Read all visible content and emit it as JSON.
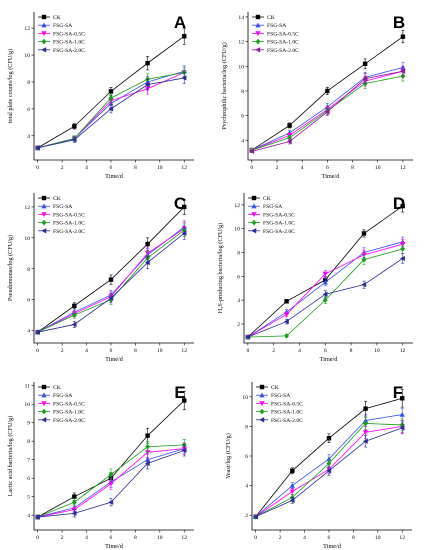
{
  "chart_data": [
    {
      "type": "line",
      "letter": "A",
      "xlabel": "Time/d",
      "ylabel": "total plate counts/log (CFU/g)",
      "x": [
        0,
        3,
        6,
        9,
        12
      ],
      "xlim": [
        -0.3,
        12.8
      ],
      "ylim": [
        2.2,
        13.2
      ],
      "xticks": [
        0,
        2,
        4,
        6,
        8,
        10,
        12
      ],
      "yticks": [
        4,
        6,
        8,
        10,
        12
      ],
      "legend": "top-left",
      "series": [
        {
          "name": "CK",
          "color": "#000000",
          "marker": "square",
          "values": [
            3.1,
            4.7,
            7.3,
            9.4,
            11.4
          ],
          "err": [
            0.1,
            0.2,
            0.3,
            0.5,
            0.6
          ]
        },
        {
          "name": "FSG-SA",
          "color": "#3a4ff0",
          "marker": "triangle-up",
          "values": [
            3.1,
            3.8,
            6.4,
            8.0,
            8.8
          ],
          "err": [
            0.1,
            0.2,
            0.3,
            0.4,
            0.4
          ]
        },
        {
          "name": "FSG-SA-0.5C",
          "color": "#ff00ff",
          "marker": "triangle-down",
          "values": [
            3.1,
            3.8,
            6.6,
            7.5,
            8.7
          ],
          "err": [
            0.1,
            0.2,
            0.3,
            0.4,
            0.4
          ]
        },
        {
          "name": "FSG-SA-1.0C",
          "color": "#1a9f1a",
          "marker": "diamond",
          "values": [
            3.1,
            3.8,
            6.8,
            8.2,
            8.7
          ],
          "err": [
            0.1,
            0.2,
            0.3,
            0.4,
            0.4
          ]
        },
        {
          "name": "FSG-SA-2.0C",
          "color": "#2a2a9a",
          "marker": "triangle-left",
          "values": [
            3.1,
            3.7,
            6.0,
            7.8,
            8.3
          ],
          "err": [
            0.1,
            0.2,
            0.3,
            0.4,
            0.4
          ]
        }
      ]
    },
    {
      "type": "line",
      "letter": "B",
      "xlabel": "Time/d",
      "ylabel": "Psychrophilic bacteria/log (CFU/g)",
      "x": [
        0,
        3,
        6,
        9,
        12
      ],
      "xlim": [
        -0.3,
        12.8
      ],
      "ylim": [
        2.4,
        14.4
      ],
      "xticks": [
        0,
        2,
        4,
        6,
        8,
        10,
        12
      ],
      "yticks": [
        4,
        6,
        8,
        10,
        12,
        14
      ],
      "legend": "top-left",
      "series": [
        {
          "name": "CK",
          "color": "#000000",
          "marker": "square",
          "values": [
            3.2,
            5.2,
            8.0,
            10.2,
            12.4
          ],
          "err": [
            0.1,
            0.2,
            0.3,
            0.4,
            0.5
          ]
        },
        {
          "name": "FSG-SA",
          "color": "#3a4ff0",
          "marker": "triangle-up",
          "values": [
            3.2,
            4.6,
            6.7,
            9.1,
            9.9
          ],
          "err": [
            0.1,
            0.2,
            0.3,
            0.4,
            0.4
          ]
        },
        {
          "name": "FSG-SA-0.5C",
          "color": "#ff00ff",
          "marker": "triangle-down",
          "values": [
            3.2,
            4.4,
            6.5,
            8.8,
            9.6
          ],
          "err": [
            0.1,
            0.2,
            0.3,
            0.4,
            0.4
          ]
        },
        {
          "name": "FSG-SA-1.0C",
          "color": "#1a9f1a",
          "marker": "diamond",
          "values": [
            3.2,
            4.2,
            6.4,
            8.6,
            9.2
          ],
          "err": [
            0.1,
            0.2,
            0.3,
            0.4,
            0.4
          ]
        },
        {
          "name": "FSG-SA-2.0C",
          "color": "#8a1a9a",
          "marker": "triangle-left",
          "values": [
            3.1,
            3.9,
            6.3,
            9.0,
            9.6
          ],
          "err": [
            0.1,
            0.2,
            0.3,
            0.4,
            0.4
          ]
        }
      ]
    },
    {
      "type": "line",
      "letter": "C",
      "xlabel": "Time/d",
      "ylabel": "Pseudomonas/log (CFU/g)",
      "x": [
        0,
        3,
        6,
        9,
        12
      ],
      "xlim": [
        -0.3,
        12.8
      ],
      "ylim": [
        3.2,
        12.9
      ],
      "xticks": [
        0,
        2,
        4,
        6,
        8,
        10,
        12
      ],
      "yticks": [
        4,
        6,
        8,
        10,
        12
      ],
      "legend": "top-left",
      "series": [
        {
          "name": "CK",
          "color": "#000000",
          "marker": "square",
          "values": [
            3.9,
            5.6,
            7.3,
            9.6,
            12.0
          ],
          "err": [
            0.1,
            0.2,
            0.3,
            0.4,
            0.5
          ]
        },
        {
          "name": "FSG-SA",
          "color": "#3a4ff0",
          "marker": "triangle-up",
          "values": [
            3.9,
            5.2,
            6.3,
            8.9,
            10.7
          ],
          "err": [
            0.1,
            0.2,
            0.3,
            0.4,
            0.4
          ]
        },
        {
          "name": "FSG-SA-0.5C",
          "color": "#ff00ff",
          "marker": "triangle-down",
          "values": [
            3.9,
            5.1,
            6.2,
            9.0,
            10.6
          ],
          "err": [
            0.1,
            0.2,
            0.3,
            0.4,
            0.4
          ]
        },
        {
          "name": "FSG-SA-1.0C",
          "color": "#1a9f1a",
          "marker": "diamond",
          "values": [
            3.9,
            5.0,
            6.0,
            8.7,
            10.5
          ],
          "err": [
            0.1,
            0.2,
            0.3,
            0.4,
            0.4
          ]
        },
        {
          "name": "FSG-SA-2.0C",
          "color": "#2a2a9a",
          "marker": "triangle-left",
          "values": [
            3.9,
            4.4,
            6.1,
            8.4,
            10.3
          ],
          "err": [
            0.1,
            0.2,
            0.3,
            0.4,
            0.4
          ]
        }
      ]
    },
    {
      "type": "line",
      "letter": "D",
      "xlabel": "Time/d",
      "ylabel": "H₂S-producing bacteria/log (CFU/g)",
      "x": [
        0,
        3,
        6,
        9,
        12
      ],
      "xlim": [
        -0.3,
        12.8
      ],
      "ylim": [
        0.4,
        13.0
      ],
      "xticks": [
        0,
        2,
        4,
        6,
        8,
        10,
        12
      ],
      "yticks": [
        2,
        4,
        6,
        8,
        10,
        12
      ],
      "legend": "top-left",
      "series": [
        {
          "name": "CK",
          "color": "#000000",
          "marker": "square",
          "values": [
            0.9,
            3.9,
            5.7,
            9.6,
            11.9
          ],
          "err": [
            0.05,
            0.15,
            0.3,
            0.3,
            0.5
          ]
        },
        {
          "name": "FSG-SA",
          "color": "#3a4ff0",
          "marker": "triangle-up",
          "values": [
            0.9,
            3.0,
            5.5,
            8.0,
            8.9
          ],
          "err": [
            0.05,
            0.2,
            0.3,
            0.4,
            0.4
          ]
        },
        {
          "name": "FSG-SA-0.5C",
          "color": "#ff00ff",
          "marker": "triangle-down",
          "values": [
            0.9,
            2.8,
            6.2,
            7.8,
            8.7
          ],
          "err": [
            0.05,
            0.2,
            0.3,
            0.4,
            0.4
          ]
        },
        {
          "name": "FSG-SA-1.0C",
          "color": "#1a9f1a",
          "marker": "diamond",
          "values": [
            0.9,
            1.0,
            4.0,
            7.4,
            8.3
          ],
          "err": [
            0.05,
            0.1,
            0.3,
            0.4,
            0.4
          ]
        },
        {
          "name": "FSG-SA-2.0C",
          "color": "#2a2a9a",
          "marker": "triangle-left",
          "values": [
            0.9,
            2.2,
            4.5,
            5.3,
            7.5
          ],
          "err": [
            0.05,
            0.2,
            0.3,
            0.3,
            0.4
          ]
        }
      ]
    },
    {
      "type": "line",
      "letter": "E",
      "xlabel": "Time/d",
      "ylabel": "Lactic acid bacteria/log (CFU/g)",
      "x": [
        0,
        3,
        6,
        9,
        12
      ],
      "xlim": [
        -0.3,
        12.8
      ],
      "ylim": [
        3.2,
        11.2
      ],
      "xticks": [
        0,
        2,
        4,
        6,
        8,
        10,
        12
      ],
      "yticks": [
        4,
        5,
        6,
        7,
        8,
        9,
        10,
        11
      ],
      "legend": "top-left",
      "series": [
        {
          "name": "CK",
          "color": "#000000",
          "marker": "square",
          "values": [
            3.9,
            5.0,
            6.0,
            8.3,
            10.2
          ],
          "err": [
            0.1,
            0.2,
            0.3,
            0.4,
            0.5
          ]
        },
        {
          "name": "FSG-SA",
          "color": "#3a4ff0",
          "marker": "triangle-up",
          "values": [
            3.9,
            4.4,
            5.8,
            7.0,
            7.6
          ],
          "err": [
            0.1,
            0.2,
            0.3,
            0.3,
            0.3
          ]
        },
        {
          "name": "FSG-SA-0.5C",
          "color": "#ff00ff",
          "marker": "triangle-down",
          "values": [
            3.9,
            4.3,
            5.7,
            7.4,
            7.6
          ],
          "err": [
            0.1,
            0.2,
            0.3,
            0.3,
            0.3
          ]
        },
        {
          "name": "FSG-SA-1.0C",
          "color": "#1a9f1a",
          "marker": "diamond",
          "values": [
            3.9,
            4.7,
            6.2,
            7.7,
            7.8
          ],
          "err": [
            0.1,
            0.2,
            0.3,
            0.3,
            0.3
          ]
        },
        {
          "name": "FSG-SA-2.0C",
          "color": "#2a2a9a",
          "marker": "triangle-left",
          "values": [
            3.9,
            4.1,
            4.7,
            6.8,
            7.5
          ],
          "err": [
            0.1,
            0.2,
            0.2,
            0.3,
            0.3
          ]
        }
      ]
    },
    {
      "type": "line",
      "letter": "F",
      "xlabel": "Time/d",
      "ylabel": "Yeast/log (CFU/g)",
      "x": [
        0,
        3,
        6,
        9,
        12
      ],
      "xlim": [
        -0.3,
        12.8
      ],
      "ylim": [
        1.0,
        11.0
      ],
      "xticks": [
        0,
        2,
        4,
        6,
        8,
        10,
        12
      ],
      "yticks": [
        2,
        4,
        6,
        8,
        10
      ],
      "legend": "top-left",
      "series": [
        {
          "name": "CK",
          "color": "#000000",
          "marker": "square",
          "values": [
            1.9,
            5.0,
            7.2,
            9.2,
            9.9
          ],
          "err": [
            0.05,
            0.2,
            0.3,
            0.5,
            0.6
          ]
        },
        {
          "name": "FSG-SA",
          "color": "#3a4ff0",
          "marker": "triangle-up",
          "values": [
            1.9,
            4.0,
            5.8,
            8.4,
            8.8
          ],
          "err": [
            0.05,
            0.2,
            0.3,
            0.4,
            0.4
          ]
        },
        {
          "name": "FSG-SA-0.5C",
          "color": "#ff00ff",
          "marker": "triangle-down",
          "values": [
            1.9,
            3.6,
            5.1,
            7.6,
            8.0
          ],
          "err": [
            0.05,
            0.2,
            0.3,
            0.4,
            0.4
          ]
        },
        {
          "name": "FSG-SA-1.0C",
          "color": "#1a9f1a",
          "marker": "diamond",
          "values": [
            1.9,
            3.2,
            5.5,
            8.2,
            8.1
          ],
          "err": [
            0.05,
            0.2,
            0.3,
            0.4,
            0.4
          ]
        },
        {
          "name": "FSG-SA-2.0C",
          "color": "#2a2a9a",
          "marker": "triangle-left",
          "values": [
            1.9,
            3.0,
            5.0,
            7.0,
            7.9
          ],
          "err": [
            0.05,
            0.2,
            0.3,
            0.4,
            0.4
          ]
        }
      ]
    }
  ]
}
